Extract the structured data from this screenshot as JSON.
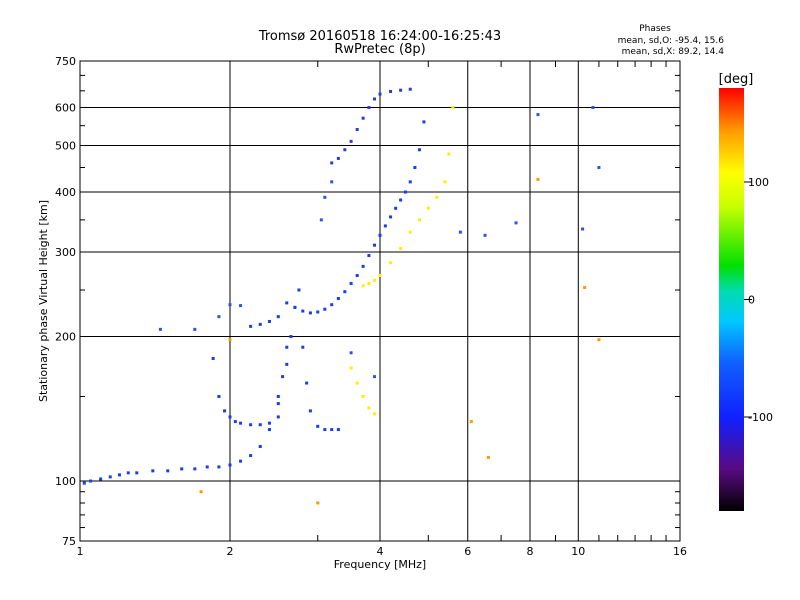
{
  "chart_data": {
    "type": "scatter",
    "title": "Tromsø 20160518 16:24:00-16:25:43",
    "subtitle": "RwPretec (8p)",
    "xlabel": "Frequency [MHz]",
    "ylabel": "Stationary phase Virtual Height [km]",
    "x_scale": "log",
    "y_scale": "log",
    "xlim": [
      1,
      16
    ],
    "ylim": [
      75,
      750
    ],
    "x_ticks": [
      1,
      2,
      4,
      6,
      8,
      10,
      16
    ],
    "y_ticks": [
      75,
      100,
      200,
      300,
      400,
      500,
      600,
      750
    ],
    "grid": true,
    "stats": {
      "heading": "Phases",
      "o_line": "mean, sd,O: -95.4, 15.6",
      "x_line": "mean, sd,X:  89.2, 14.4"
    },
    "colorbar": {
      "label": "[deg]",
      "ticks": [
        -100,
        0,
        100
      ],
      "range": [
        -180,
        180
      ],
      "colors": [
        "#000000",
        "#5a0a82",
        "#1020ff",
        "#00c8ff",
        "#00e000",
        "#ffff00",
        "#ff9900",
        "#ff0000"
      ]
    },
    "series": [
      {
        "color": "#1a3cf0",
        "x": [
          1.02,
          1.05,
          1.1,
          1.15,
          1.2,
          1.25,
          1.3,
          1.4,
          1.5,
          1.6,
          1.7,
          1.8,
          1.9,
          2.0,
          2.1,
          2.2,
          2.3,
          2.4,
          2.5,
          2.55,
          2.6
        ],
        "y": [
          99,
          100,
          101,
          102,
          103,
          104,
          104,
          105,
          105,
          106,
          106,
          107,
          107,
          108,
          110,
          113,
          118,
          128,
          145,
          165,
          190
        ]
      },
      {
        "color": "#1a3cf0",
        "x": [
          1.85,
          1.9,
          1.95,
          2.0,
          2.05,
          2.1,
          2.2,
          2.3,
          2.4,
          2.5
        ],
        "y": [
          180,
          150,
          140,
          136,
          133,
          132,
          131,
          131,
          132,
          136
        ]
      },
      {
        "color": "#1a3cf0",
        "x": [
          2.5,
          2.6,
          2.65,
          2.7,
          2.75,
          2.8,
          2.85,
          2.9,
          3.0,
          3.1,
          3.2,
          3.3
        ],
        "y": [
          150,
          175,
          200,
          230,
          250,
          190,
          160,
          140,
          130,
          128,
          128,
          128
        ]
      },
      {
        "color": "#1a3cf0",
        "x": [
          2.2,
          2.3,
          2.4,
          2.5,
          2.6,
          2.7,
          2.8,
          2.9,
          3.0,
          3.1,
          3.2,
          3.3,
          3.4,
          3.5,
          3.6,
          3.7,
          3.8,
          3.9,
          4.0,
          4.1,
          4.2,
          4.3,
          4.4,
          4.5,
          4.6,
          4.7,
          4.8,
          4.9
        ],
        "y": [
          210,
          212,
          215,
          220,
          235,
          230,
          226,
          224,
          225,
          228,
          233,
          240,
          248,
          258,
          268,
          280,
          295,
          310,
          325,
          340,
          355,
          370,
          385,
          400,
          420,
          450,
          490,
          560
        ]
      },
      {
        "color": "#2a3ad8",
        "x": [
          3.2,
          3.3,
          3.4,
          3.5,
          3.6,
          3.7,
          3.8,
          3.9,
          4.0,
          4.2,
          4.4,
          4.6
        ],
        "y": [
          460,
          470,
          490,
          510,
          540,
          570,
          600,
          625,
          640,
          648,
          652,
          655
        ]
      },
      {
        "color": "#ffee00",
        "x": [
          3.7,
          3.8,
          3.9,
          4.0,
          4.2,
          4.4,
          4.6,
          4.8,
          5.0,
          5.2,
          5.4,
          5.5,
          5.6
        ],
        "y": [
          255,
          258,
          262,
          268,
          285,
          305,
          330,
          350,
          370,
          390,
          420,
          480,
          600
        ]
      },
      {
        "color": "#ffee00",
        "x": [
          3.5,
          3.6,
          3.7,
          3.8,
          3.9
        ],
        "y": [
          172,
          160,
          150,
          142,
          138
        ]
      },
      {
        "color": "#3050e8",
        "x": [
          1.45,
          1.7,
          1.9,
          2.0,
          2.1,
          3.05,
          3.1,
          3.2,
          3.5,
          3.9,
          5.8,
          6.5,
          7.5,
          8.3,
          10.2,
          10.7,
          11.0
        ],
        "y": [
          207,
          207,
          220,
          233,
          232,
          350,
          390,
          420,
          185,
          165,
          330,
          325,
          345,
          580,
          335,
          600,
          450
        ]
      },
      {
        "color": "#ff9900",
        "x": [
          1.75,
          2.0,
          3.0,
          6.1,
          6.6,
          8.3,
          10.3,
          11.0
        ],
        "y": [
          95,
          197,
          90,
          133,
          112,
          425,
          253,
          197
        ]
      }
    ]
  }
}
